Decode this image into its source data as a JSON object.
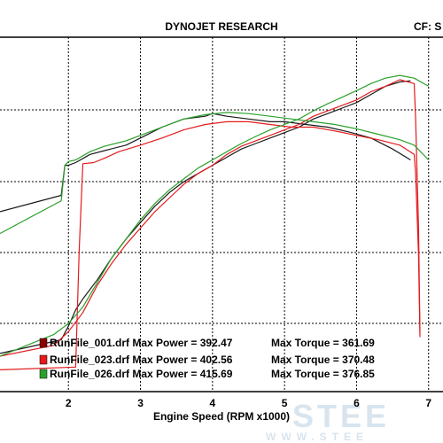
{
  "chart_data": {
    "type": "line",
    "title": "DYNOJET RESEARCH",
    "correction_factor_label": "CF: S",
    "xlabel": "Engine Speed (RPM x1000)",
    "xlim": [
      1.05,
      7.2
    ],
    "x_ticks": [
      2,
      3,
      4,
      5,
      6,
      7
    ],
    "grid": true,
    "legend_position": "bottom-left",
    "series": [
      {
        "name": "RunFile_001.drf",
        "color": "#1a1a1a",
        "legend_marker_color": "#8b0000",
        "max_power": "392.47",
        "max_torque": "361.69",
        "power": {
          "x": [
            1.05,
            1.9,
            2.0,
            2.1,
            2.2,
            2.4,
            2.6,
            2.8,
            3.0,
            3.2,
            3.4,
            3.6,
            3.8,
            4.0,
            4.2,
            4.4,
            4.6,
            4.8,
            5.0,
            5.2,
            5.4,
            5.6,
            5.8,
            6.0,
            6.2,
            6.4,
            6.6,
            6.75
          ],
          "y": [
            370,
            395,
            420,
            450,
            470,
            505,
            545,
            580,
            610,
            640,
            665,
            685,
            700,
            715,
            730,
            745,
            755,
            765,
            775,
            785,
            800,
            810,
            820,
            830,
            845,
            860,
            868,
            870
          ]
        },
        "torque": {
          "x": [
            1.05,
            1.9,
            1.95,
            2.0,
            2.1,
            2.3,
            2.5,
            2.8,
            3.0,
            3.3,
            3.6,
            3.9,
            4.0,
            4.2,
            4.5,
            4.8,
            5.0,
            5.3,
            5.6,
            5.9,
            6.2,
            6.5,
            6.75
          ],
          "y": [
            630,
            660,
            715,
            715,
            720,
            735,
            742,
            752,
            765,
            785,
            800,
            805,
            810,
            805,
            800,
            795,
            795,
            790,
            785,
            776,
            765,
            745,
            725
          ]
        }
      },
      {
        "name": "RunFile_023.drf",
        "color": "#e41a1c",
        "legend_marker_color": "#e41a1c",
        "max_power": "402.56",
        "max_torque": "370.48",
        "power": {
          "x": [
            1.05,
            1.8,
            2.0,
            2.2,
            2.4,
            2.6,
            2.8,
            3.0,
            3.2,
            3.4,
            3.6,
            3.8,
            4.0,
            4.2,
            4.4,
            4.6,
            4.8,
            5.0,
            5.2,
            5.4,
            5.6,
            5.8,
            6.0,
            6.2,
            6.4,
            6.6,
            6.8,
            6.82,
            6.86,
            6.88
          ],
          "y": [
            365,
            385,
            410,
            445,
            495,
            535,
            570,
            600,
            630,
            655,
            680,
            700,
            715,
            735,
            750,
            760,
            770,
            780,
            790,
            805,
            815,
            825,
            835,
            850,
            860,
            872,
            865,
            800,
            600,
            410
          ]
        },
        "torque": {
          "x": [
            1.05,
            2.1,
            2.15,
            2.2,
            2.35,
            2.5,
            2.7,
            3.0,
            3.3,
            3.6,
            3.9,
            4.2,
            4.5,
            4.8,
            5.1,
            5.4,
            5.7,
            6.0,
            6.3,
            6.6,
            6.8,
            6.82,
            6.86,
            6.88
          ],
          "y": [
            340,
            345,
            560,
            718,
            720,
            728,
            740,
            752,
            765,
            780,
            790,
            795,
            795,
            790,
            785,
            785,
            778,
            770,
            762,
            752,
            735,
            700,
            550,
            400
          ]
        }
      },
      {
        "name": "RunFile_026.drf",
        "color": "#2aa02a",
        "legend_marker_color": "#2aa02a",
        "max_power": "415.69",
        "max_torque": "376.85",
        "power": {
          "x": [
            1.05,
            1.8,
            2.0,
            2.2,
            2.4,
            2.6,
            2.8,
            3.0,
            3.2,
            3.4,
            3.6,
            3.8,
            4.0,
            4.2,
            4.4,
            4.6,
            4.8,
            5.0,
            5.2,
            5.4,
            5.6,
            5.8,
            6.0,
            6.2,
            6.4,
            6.6,
            6.8,
            7.0
          ],
          "y": [
            365,
            405,
            425,
            455,
            500,
            545,
            580,
            615,
            645,
            670,
            690,
            710,
            725,
            740,
            755,
            768,
            780,
            790,
            800,
            815,
            828,
            840,
            852,
            865,
            875,
            880,
            875,
            860
          ]
        },
        "torque": {
          "x": [
            1.05,
            1.9,
            1.95,
            2.0,
            2.1,
            2.3,
            2.5,
            2.8,
            3.0,
            3.3,
            3.6,
            3.9,
            4.2,
            4.5,
            4.8,
            5.1,
            5.4,
            5.7,
            6.0,
            6.3,
            6.6,
            6.8,
            7.0
          ],
          "y": [
            590,
            650,
            715,
            722,
            725,
            740,
            750,
            760,
            770,
            785,
            800,
            808,
            812,
            810,
            805,
            800,
            795,
            790,
            782,
            772,
            762,
            752,
            725
          ]
        }
      }
    ]
  }
}
